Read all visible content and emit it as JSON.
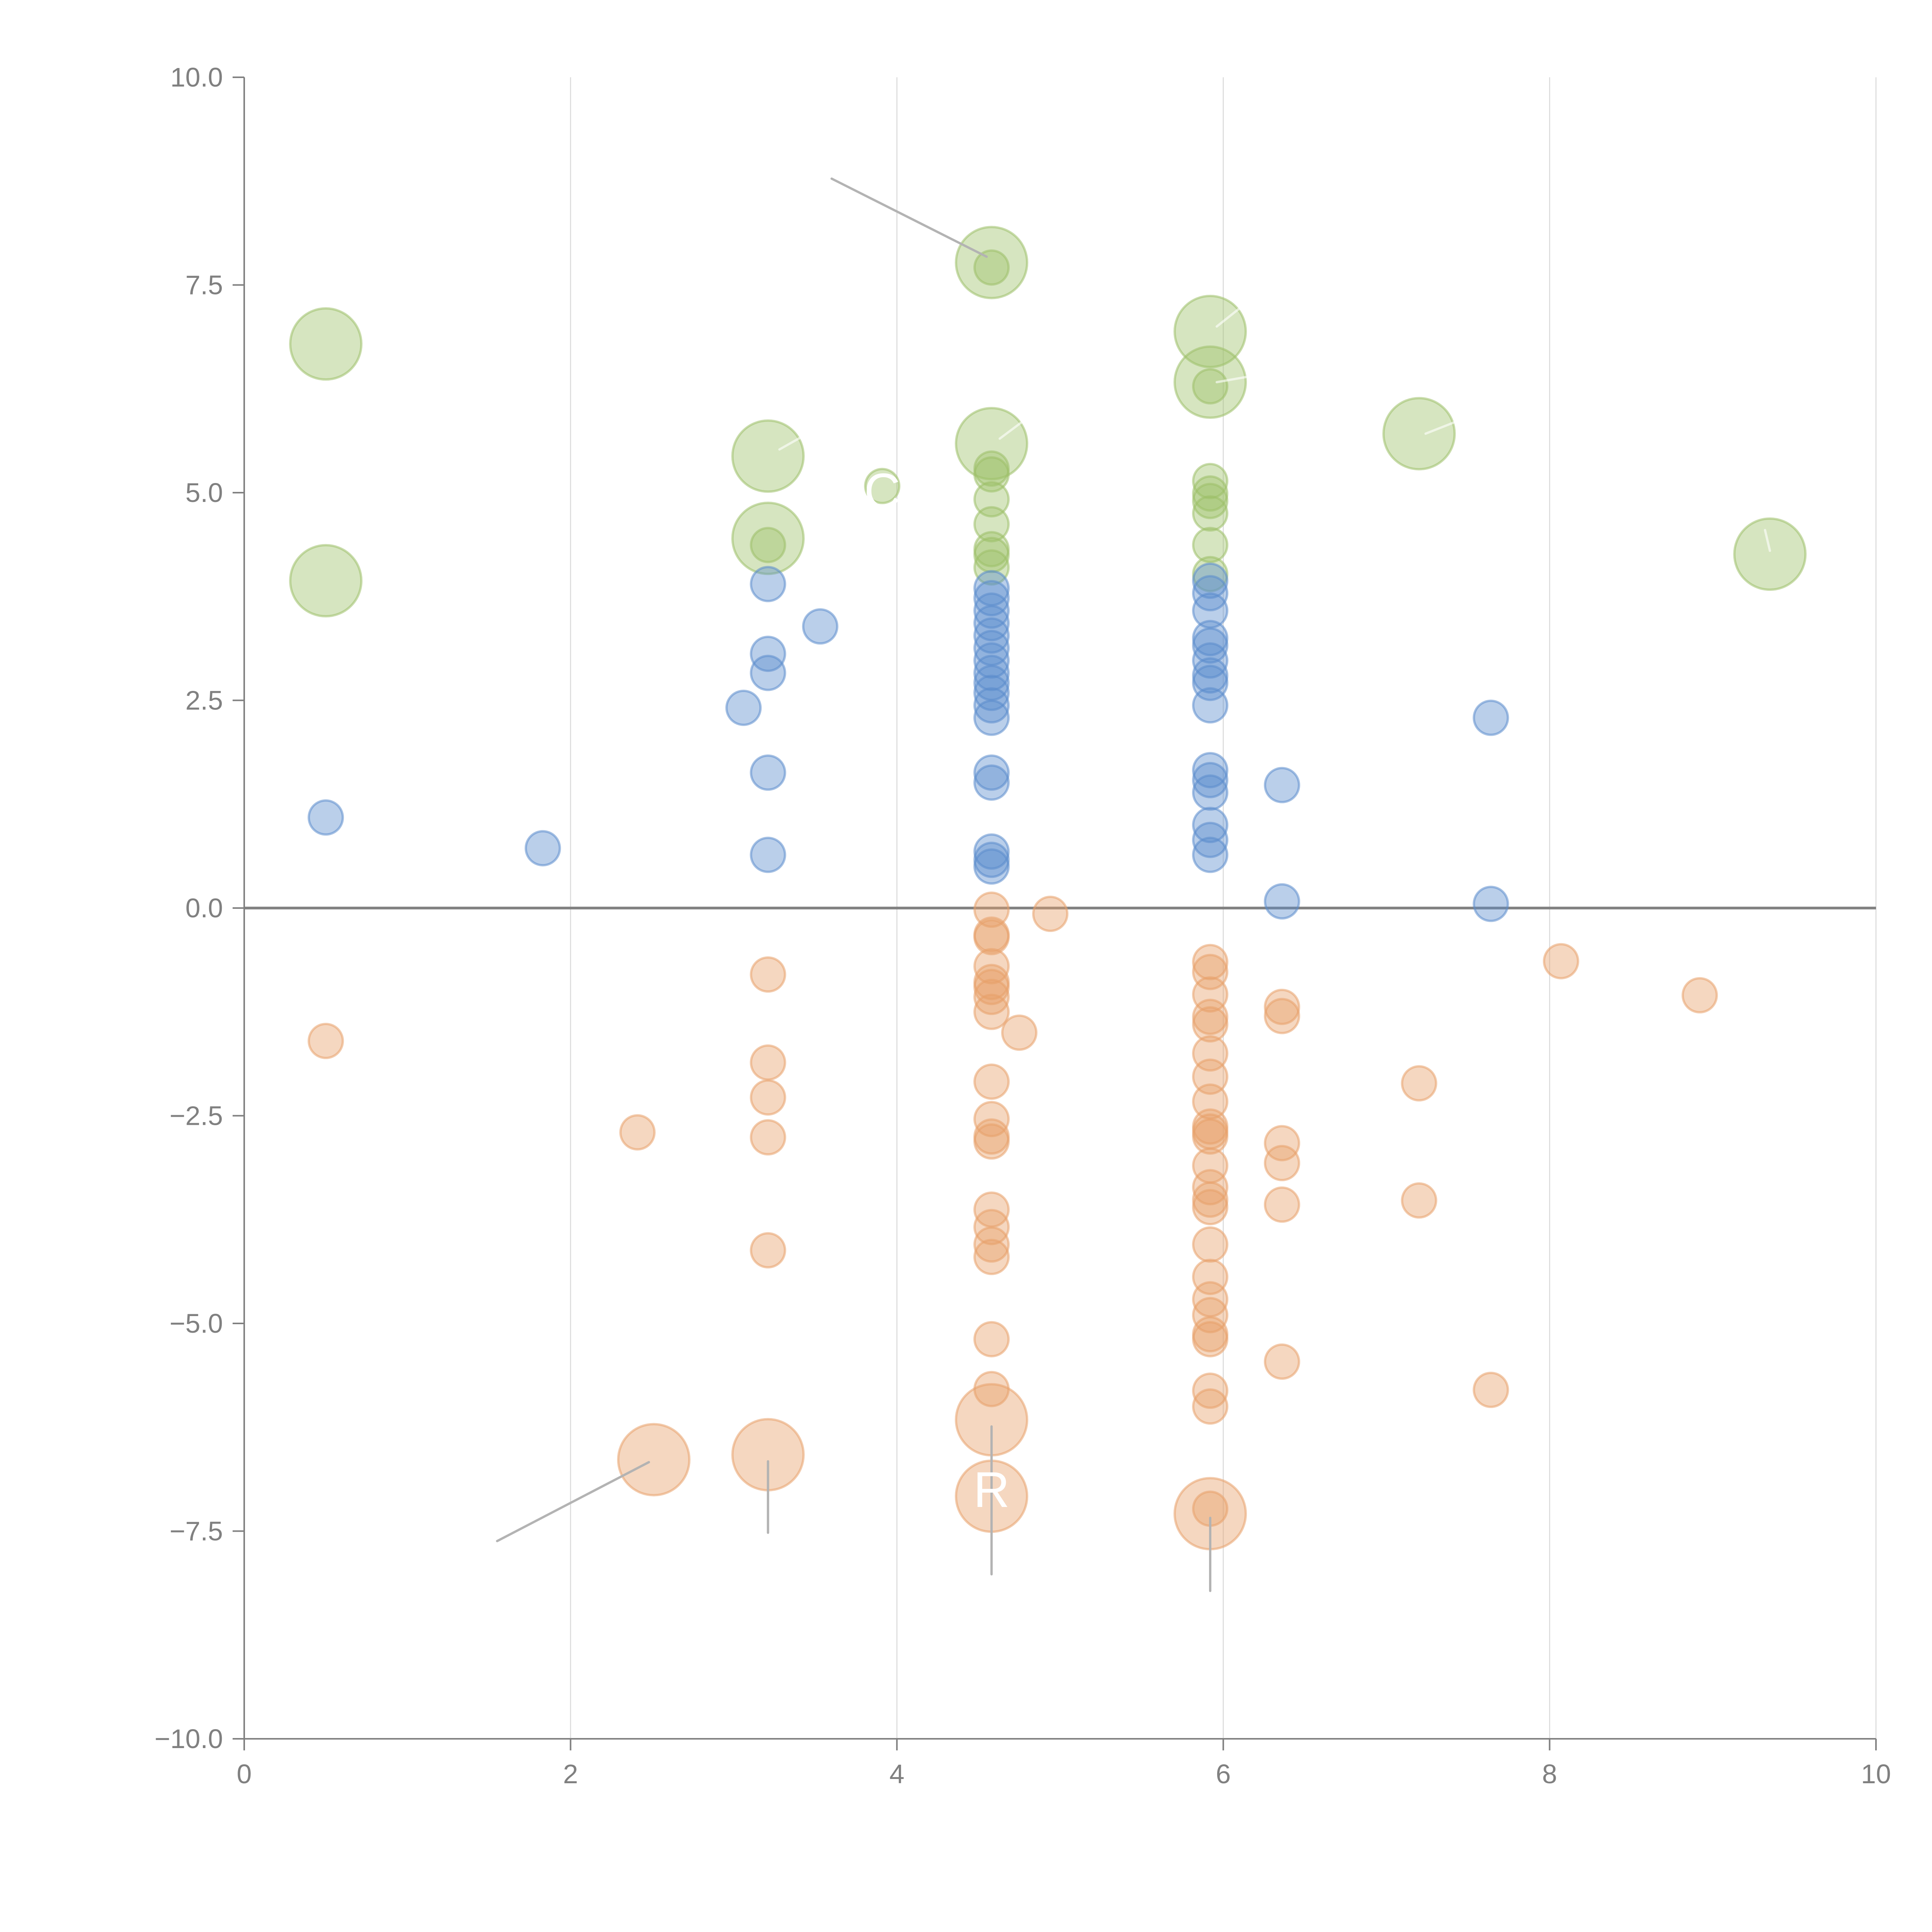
{
  "chart_data": {
    "type": "scatter",
    "title": "",
    "xlabel": "",
    "ylabel": "",
    "xlim": [
      0,
      10
    ],
    "ylim": [
      -10,
      10
    ],
    "x_ticks": [
      0,
      2,
      4,
      6,
      8,
      10
    ],
    "x_tick_labels": [
      "0",
      "2",
      "4",
      "6",
      "8",
      "10"
    ],
    "y_ticks": [
      -10,
      -7.5,
      -5,
      -2.5,
      0,
      2.5,
      5,
      7.5,
      10
    ],
    "y_tick_labels": [
      "−10.0",
      "−7.5",
      "−5.0",
      "−2.5",
      "0.0",
      "2.5",
      "5.0",
      "7.5",
      "10.0"
    ],
    "grid": "vertical",
    "zero_line": true,
    "legend": "none",
    "size_note": "point size categories: small, large",
    "series": [
      {
        "name": "green",
        "color": "#9dc068",
        "points": [
          {
            "x": 0.5,
            "y": 6.79,
            "size": "large"
          },
          {
            "x": 0.5,
            "y": 3.94,
            "size": "large"
          },
          {
            "x": 3.21,
            "y": 5.44,
            "size": "large"
          },
          {
            "x": 3.21,
            "y": 4.45,
            "size": "large"
          },
          {
            "x": 3.21,
            "y": 4.37,
            "size": "small"
          },
          {
            "x": 3.91,
            "y": 5.08,
            "size": "small"
          },
          {
            "x": 4.58,
            "y": 7.77,
            "size": "large"
          },
          {
            "x": 4.58,
            "y": 7.71,
            "size": "small"
          },
          {
            "x": 4.58,
            "y": 5.59,
            "size": "large"
          },
          {
            "x": 4.58,
            "y": 5.29,
            "size": "small"
          },
          {
            "x": 4.58,
            "y": 5.22,
            "size": "small"
          },
          {
            "x": 4.58,
            "y": 4.92,
            "size": "small"
          },
          {
            "x": 4.58,
            "y": 4.62,
            "size": "small"
          },
          {
            "x": 4.58,
            "y": 4.32,
            "size": "small"
          },
          {
            "x": 4.58,
            "y": 4.25,
            "size": "small"
          },
          {
            "x": 4.58,
            "y": 4.1,
            "size": "small"
          },
          {
            "x": 5.92,
            "y": 6.94,
            "size": "large"
          },
          {
            "x": 5.92,
            "y": 6.33,
            "size": "large"
          },
          {
            "x": 5.92,
            "y": 6.28,
            "size": "small"
          },
          {
            "x": 5.92,
            "y": 5.14,
            "size": "small"
          },
          {
            "x": 5.92,
            "y": 4.99,
            "size": "small"
          },
          {
            "x": 5.92,
            "y": 4.9,
            "size": "small"
          },
          {
            "x": 5.92,
            "y": 4.75,
            "size": "small"
          },
          {
            "x": 5.92,
            "y": 4.37,
            "size": "small"
          },
          {
            "x": 5.92,
            "y": 4.02,
            "size": "small"
          },
          {
            "x": 7.2,
            "y": 5.71,
            "size": "large"
          },
          {
            "x": 9.35,
            "y": 4.26,
            "size": "large"
          }
        ]
      },
      {
        "name": "blue",
        "color": "#5b8ccc",
        "points": [
          {
            "x": 0.5,
            "y": 1.09,
            "size": "small"
          },
          {
            "x": 1.83,
            "y": 0.72,
            "size": "small"
          },
          {
            "x": 3.06,
            "y": 2.41,
            "size": "small"
          },
          {
            "x": 3.21,
            "y": 3.9,
            "size": "small"
          },
          {
            "x": 3.21,
            "y": 3.06,
            "size": "small"
          },
          {
            "x": 3.21,
            "y": 2.83,
            "size": "small"
          },
          {
            "x": 3.21,
            "y": 1.63,
            "size": "small"
          },
          {
            "x": 3.21,
            "y": 0.64,
            "size": "small"
          },
          {
            "x": 3.53,
            "y": 3.39,
            "size": "small"
          },
          {
            "x": 4.58,
            "y": 3.85,
            "size": "small"
          },
          {
            "x": 4.58,
            "y": 3.73,
            "size": "small"
          },
          {
            "x": 4.58,
            "y": 3.58,
            "size": "small"
          },
          {
            "x": 4.58,
            "y": 3.43,
            "size": "small"
          },
          {
            "x": 4.58,
            "y": 3.28,
            "size": "small"
          },
          {
            "x": 4.58,
            "y": 3.13,
            "size": "small"
          },
          {
            "x": 4.58,
            "y": 2.98,
            "size": "small"
          },
          {
            "x": 4.58,
            "y": 2.83,
            "size": "small"
          },
          {
            "x": 4.58,
            "y": 2.71,
            "size": "small"
          },
          {
            "x": 4.58,
            "y": 2.59,
            "size": "small"
          },
          {
            "x": 4.58,
            "y": 2.44,
            "size": "small"
          },
          {
            "x": 4.58,
            "y": 2.29,
            "size": "small"
          },
          {
            "x": 4.58,
            "y": 1.63,
            "size": "small"
          },
          {
            "x": 4.58,
            "y": 1.51,
            "size": "small"
          },
          {
            "x": 4.58,
            "y": 0.68,
            "size": "small"
          },
          {
            "x": 4.58,
            "y": 0.58,
            "size": "small"
          },
          {
            "x": 4.58,
            "y": 0.5,
            "size": "small"
          },
          {
            "x": 5.92,
            "y": 3.94,
            "size": "small"
          },
          {
            "x": 5.92,
            "y": 3.79,
            "size": "small"
          },
          {
            "x": 5.92,
            "y": 3.58,
            "size": "small"
          },
          {
            "x": 5.92,
            "y": 3.25,
            "size": "small"
          },
          {
            "x": 5.92,
            "y": 3.16,
            "size": "small"
          },
          {
            "x": 5.92,
            "y": 2.98,
            "size": "small"
          },
          {
            "x": 5.92,
            "y": 2.8,
            "size": "small"
          },
          {
            "x": 5.92,
            "y": 2.71,
            "size": "small"
          },
          {
            "x": 5.92,
            "y": 2.44,
            "size": "small"
          },
          {
            "x": 5.92,
            "y": 1.66,
            "size": "small"
          },
          {
            "x": 5.92,
            "y": 1.54,
            "size": "small"
          },
          {
            "x": 5.92,
            "y": 1.39,
            "size": "small"
          },
          {
            "x": 5.92,
            "y": 1.0,
            "size": "small"
          },
          {
            "x": 5.92,
            "y": 0.82,
            "size": "small"
          },
          {
            "x": 5.92,
            "y": 0.64,
            "size": "small"
          },
          {
            "x": 6.36,
            "y": 1.48,
            "size": "small"
          },
          {
            "x": 6.36,
            "y": 0.08,
            "size": "small"
          },
          {
            "x": 7.64,
            "y": 2.29,
            "size": "small"
          },
          {
            "x": 7.64,
            "y": 0.05,
            "size": "small"
          }
        ]
      },
      {
        "name": "orange",
        "color": "#e8a06a",
        "points": [
          {
            "x": 0.5,
            "y": -1.6,
            "size": "small"
          },
          {
            "x": 2.41,
            "y": -2.7,
            "size": "small"
          },
          {
            "x": 3.21,
            "y": -0.8,
            "size": "small"
          },
          {
            "x": 3.21,
            "y": -1.86,
            "size": "small"
          },
          {
            "x": 3.21,
            "y": -2.28,
            "size": "small"
          },
          {
            "x": 3.21,
            "y": -2.76,
            "size": "small"
          },
          {
            "x": 3.21,
            "y": -4.12,
            "size": "small"
          },
          {
            "x": 2.51,
            "y": -6.64,
            "size": "large"
          },
          {
            "x": 3.21,
            "y": -6.58,
            "size": "large"
          },
          {
            "x": 4.58,
            "y": -0.02,
            "size": "small"
          },
          {
            "x": 4.58,
            "y": -0.32,
            "size": "small"
          },
          {
            "x": 4.58,
            "y": -0.35,
            "size": "small"
          },
          {
            "x": 4.58,
            "y": -0.7,
            "size": "small"
          },
          {
            "x": 4.58,
            "y": -0.89,
            "size": "small"
          },
          {
            "x": 4.58,
            "y": -0.95,
            "size": "small"
          },
          {
            "x": 4.58,
            "y": -1.07,
            "size": "small"
          },
          {
            "x": 4.58,
            "y": -1.25,
            "size": "small"
          },
          {
            "x": 4.58,
            "y": -2.09,
            "size": "small"
          },
          {
            "x": 4.58,
            "y": -2.54,
            "size": "small"
          },
          {
            "x": 4.58,
            "y": -2.75,
            "size": "small"
          },
          {
            "x": 4.58,
            "y": -2.81,
            "size": "small"
          },
          {
            "x": 4.58,
            "y": -3.63,
            "size": "small"
          },
          {
            "x": 4.58,
            "y": -3.84,
            "size": "small"
          },
          {
            "x": 4.58,
            "y": -4.05,
            "size": "small"
          },
          {
            "x": 4.58,
            "y": -4.2,
            "size": "small"
          },
          {
            "x": 4.58,
            "y": -5.19,
            "size": "small"
          },
          {
            "x": 4.58,
            "y": -5.79,
            "size": "small"
          },
          {
            "x": 4.58,
            "y": -6.16,
            "size": "large"
          },
          {
            "x": 4.58,
            "y": -7.08,
            "size": "large"
          },
          {
            "x": 4.75,
            "y": -1.5,
            "size": "small"
          },
          {
            "x": 4.94,
            "y": -0.07,
            "size": "small"
          },
          {
            "x": 5.92,
            "y": -0.65,
            "size": "small"
          },
          {
            "x": 5.92,
            "y": -0.77,
            "size": "small"
          },
          {
            "x": 5.92,
            "y": -1.04,
            "size": "small"
          },
          {
            "x": 5.92,
            "y": -1.31,
            "size": "small"
          },
          {
            "x": 5.92,
            "y": -1.4,
            "size": "small"
          },
          {
            "x": 5.92,
            "y": -1.75,
            "size": "small"
          },
          {
            "x": 5.92,
            "y": -2.03,
            "size": "small"
          },
          {
            "x": 5.92,
            "y": -2.33,
            "size": "small"
          },
          {
            "x": 5.92,
            "y": -2.63,
            "size": "small"
          },
          {
            "x": 5.92,
            "y": -2.69,
            "size": "small"
          },
          {
            "x": 5.92,
            "y": -2.75,
            "size": "small"
          },
          {
            "x": 5.92,
            "y": -3.1,
            "size": "small"
          },
          {
            "x": 5.92,
            "y": -3.36,
            "size": "small"
          },
          {
            "x": 5.92,
            "y": -3.51,
            "size": "small"
          },
          {
            "x": 5.92,
            "y": -3.6,
            "size": "small"
          },
          {
            "x": 5.92,
            "y": -4.05,
            "size": "small"
          },
          {
            "x": 5.92,
            "y": -4.44,
            "size": "small"
          },
          {
            "x": 5.92,
            "y": -4.71,
            "size": "small"
          },
          {
            "x": 5.92,
            "y": -4.9,
            "size": "small"
          },
          {
            "x": 5.92,
            "y": -5.13,
            "size": "small"
          },
          {
            "x": 5.92,
            "y": -5.19,
            "size": "small"
          },
          {
            "x": 5.92,
            "y": -5.81,
            "size": "small"
          },
          {
            "x": 5.92,
            "y": -6.0,
            "size": "small"
          },
          {
            "x": 5.92,
            "y": -7.29,
            "size": "large"
          },
          {
            "x": 5.92,
            "y": -7.23,
            "size": "small"
          },
          {
            "x": 6.36,
            "y": -1.19,
            "size": "small"
          },
          {
            "x": 6.36,
            "y": -1.3,
            "size": "small"
          },
          {
            "x": 6.36,
            "y": -2.83,
            "size": "small"
          },
          {
            "x": 6.36,
            "y": -3.07,
            "size": "small"
          },
          {
            "x": 6.36,
            "y": -3.57,
            "size": "small"
          },
          {
            "x": 6.36,
            "y": -5.46,
            "size": "small"
          },
          {
            "x": 7.2,
            "y": -2.11,
            "size": "small"
          },
          {
            "x": 7.2,
            "y": -3.52,
            "size": "small"
          },
          {
            "x": 7.64,
            "y": -5.8,
            "size": "small"
          },
          {
            "x": 8.07,
            "y": -0.64,
            "size": "small"
          },
          {
            "x": 8.92,
            "y": -1.05,
            "size": "small"
          }
        ]
      }
    ],
    "annotations": [
      {
        "text": "C",
        "x": 3.91,
        "y": 5.02,
        "color": "#ffffff"
      },
      {
        "text": "R",
        "x": 4.58,
        "y": -7.0,
        "color": "#ffffff"
      }
    ],
    "leader_lines": [
      {
        "from": [
          3.6,
          8.78
        ],
        "to": [
          4.55,
          7.84
        ],
        "color": "#b3b3b3"
      },
      {
        "from": [
          1.55,
          -7.62
        ],
        "to": [
          2.48,
          -6.67
        ],
        "color": "#b3b3b3"
      },
      {
        "from": [
          3.21,
          -6.66
        ],
        "to": [
          3.21,
          -7.52
        ],
        "color": "#b3b3b3"
      },
      {
        "from": [
          4.58,
          -6.24
        ],
        "to": [
          4.58,
          -8.02
        ],
        "color": "#b3b3b3"
      },
      {
        "from": [
          5.92,
          -7.34
        ],
        "to": [
          5.92,
          -8.22
        ],
        "color": "#b3b3b3"
      },
      {
        "from": [
          3.28,
          5.52
        ],
        "to": [
          3.55,
          5.82
        ],
        "color": "#ffffff"
      },
      {
        "from": [
          4.63,
          5.65
        ],
        "to": [
          4.8,
          5.9
        ],
        "color": "#ffffff"
      },
      {
        "from": [
          5.96,
          7.0
        ],
        "to": [
          6.12,
          7.25
        ],
        "color": "#ffffff"
      },
      {
        "from": [
          5.96,
          6.33
        ],
        "to": [
          6.25,
          6.43
        ],
        "color": "#ffffff"
      },
      {
        "from": [
          7.24,
          5.71
        ],
        "to": [
          7.42,
          5.85
        ],
        "color": "#ffffff"
      },
      {
        "from": [
          9.35,
          4.3
        ],
        "to": [
          9.32,
          4.55
        ],
        "color": "#ffffff"
      }
    ]
  }
}
